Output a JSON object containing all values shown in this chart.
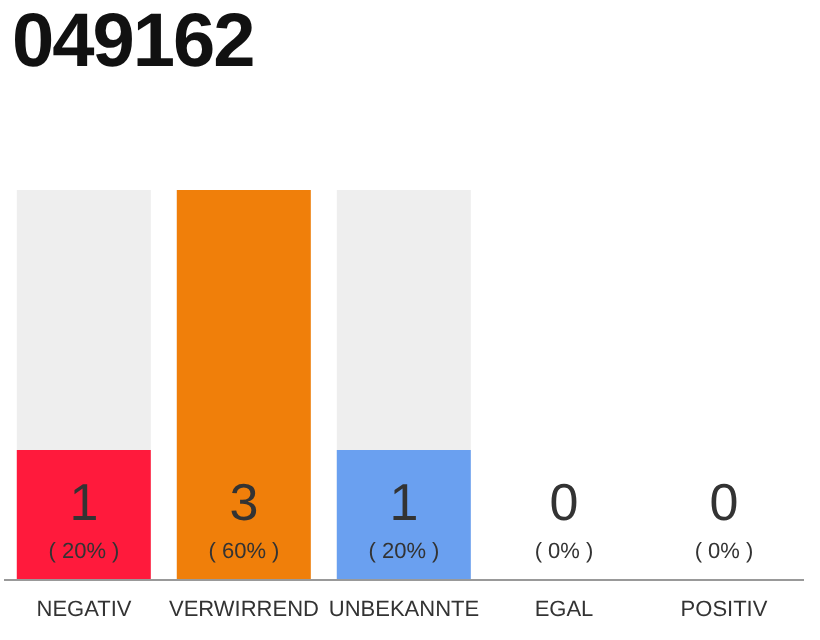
{
  "chart_data": {
    "type": "bar",
    "title": "049162",
    "categories": [
      "NEGATIV",
      "VERWIRREND",
      "UNBEKANNTE",
      "EGAL",
      "POSITIV"
    ],
    "values": [
      20,
      60,
      20,
      0,
      0
    ],
    "colors": [
      "#ff1a3c",
      "#f07f0a",
      "#6aa0f0",
      "#eeeeee",
      "#eeeeee"
    ],
    "value_labels": [
      "( 20% )",
      "( 60% )",
      "( 20% )",
      "( 0% )",
      "( 0% )"
    ],
    "annotations": [
      "1",
      "3",
      "1",
      "0",
      "0"
    ]
  }
}
